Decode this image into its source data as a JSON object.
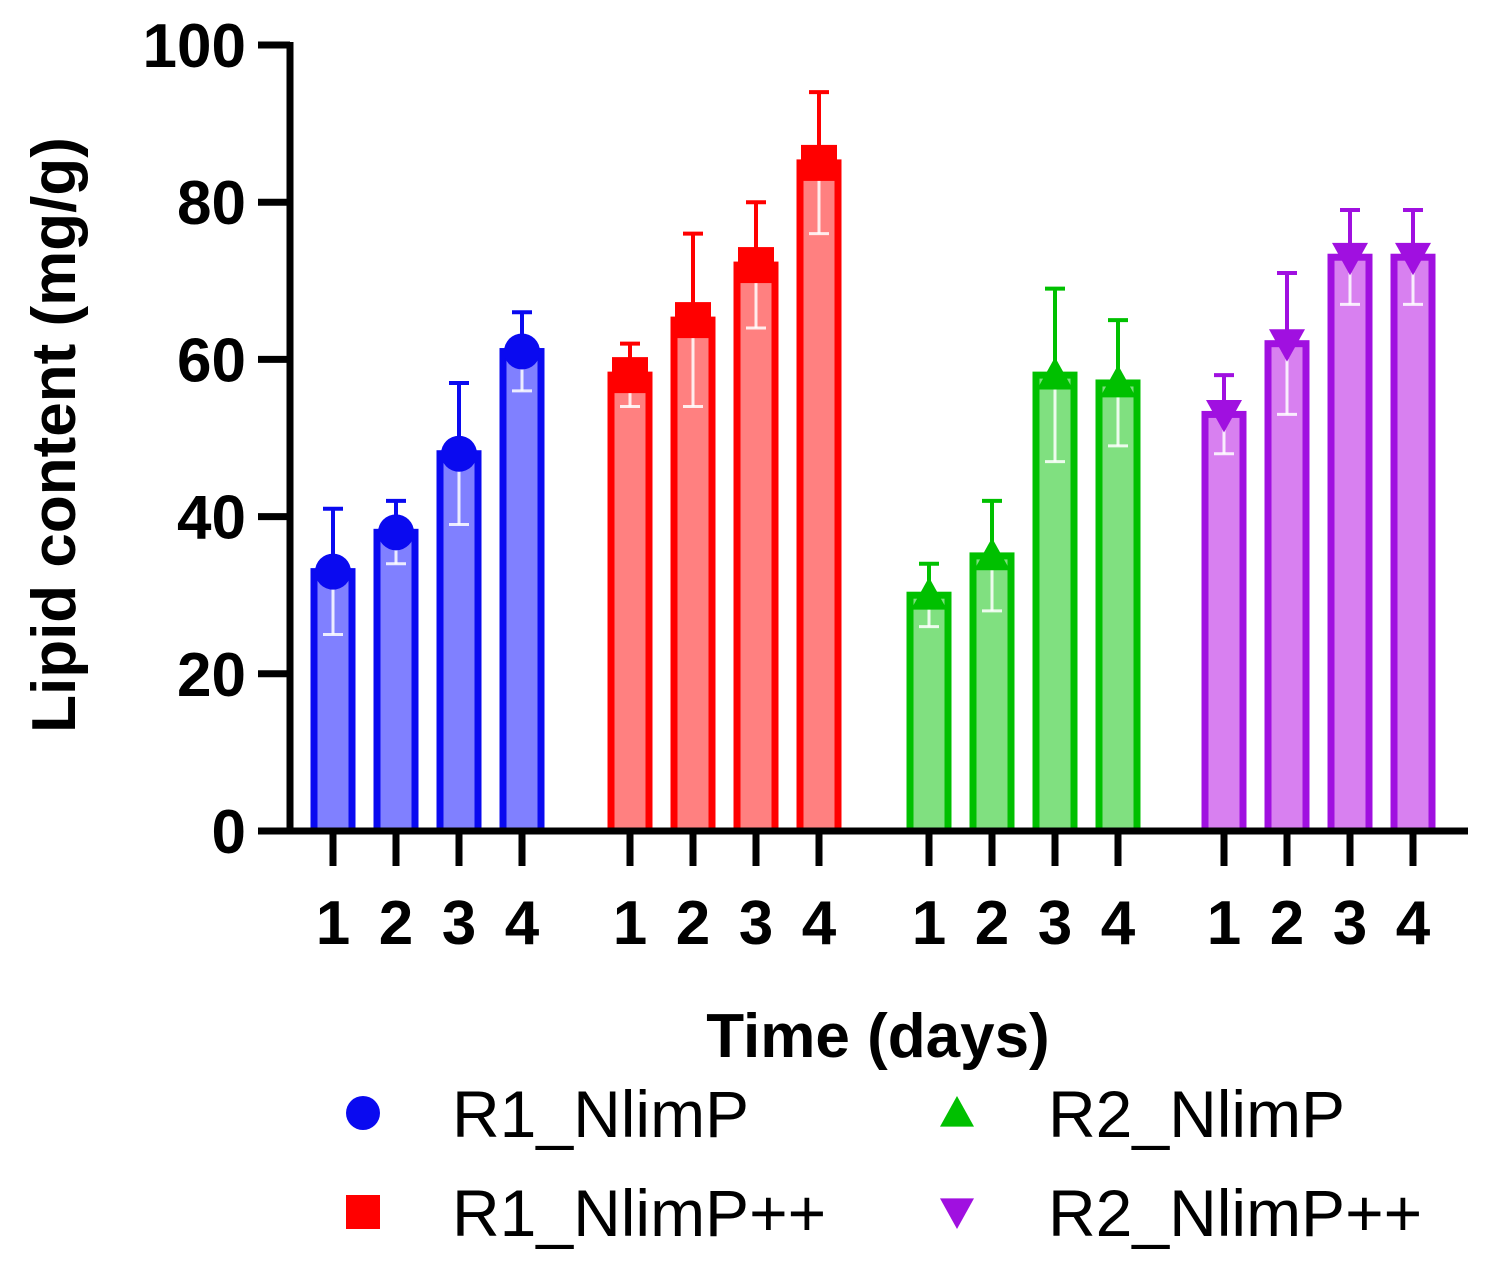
{
  "chart_data": {
    "type": "bar",
    "title": "",
    "xlabel": "Time (days)",
    "ylabel": "Lipid content (mg/g)",
    "ylim": [
      0,
      100
    ],
    "yticks": [
      0,
      20,
      40,
      60,
      80,
      100
    ],
    "grid": false,
    "categories": [
      "1",
      "2",
      "3",
      "4"
    ],
    "series": [
      {
        "name": "R1_NlimP",
        "marker": "circle",
        "color": "#0a0af0",
        "fill": "#8080ff",
        "values": [
          33,
          38,
          48,
          61
        ],
        "error": [
          8,
          4,
          9,
          5
        ]
      },
      {
        "name": "R1_NlimP++",
        "marker": "square",
        "color": "#ff0000",
        "fill": "#ff8080",
        "values": [
          58,
          65,
          72,
          85
        ],
        "error": [
          4,
          11,
          8,
          9
        ]
      },
      {
        "name": "R2_NlimP",
        "marker": "triangle-up",
        "color": "#00c000",
        "fill": "#80e080",
        "values": [
          30,
          35,
          58,
          57
        ],
        "error": [
          4,
          7,
          11,
          8
        ]
      },
      {
        "name": "R2_NlimP++",
        "marker": "triangle-down",
        "color": "#a010e0",
        "fill": "#d880f0",
        "values": [
          53,
          62,
          73,
          73
        ],
        "error": [
          5,
          9,
          6,
          6
        ]
      }
    ],
    "legend": {
      "position": "bottom",
      "columns": 2
    }
  }
}
